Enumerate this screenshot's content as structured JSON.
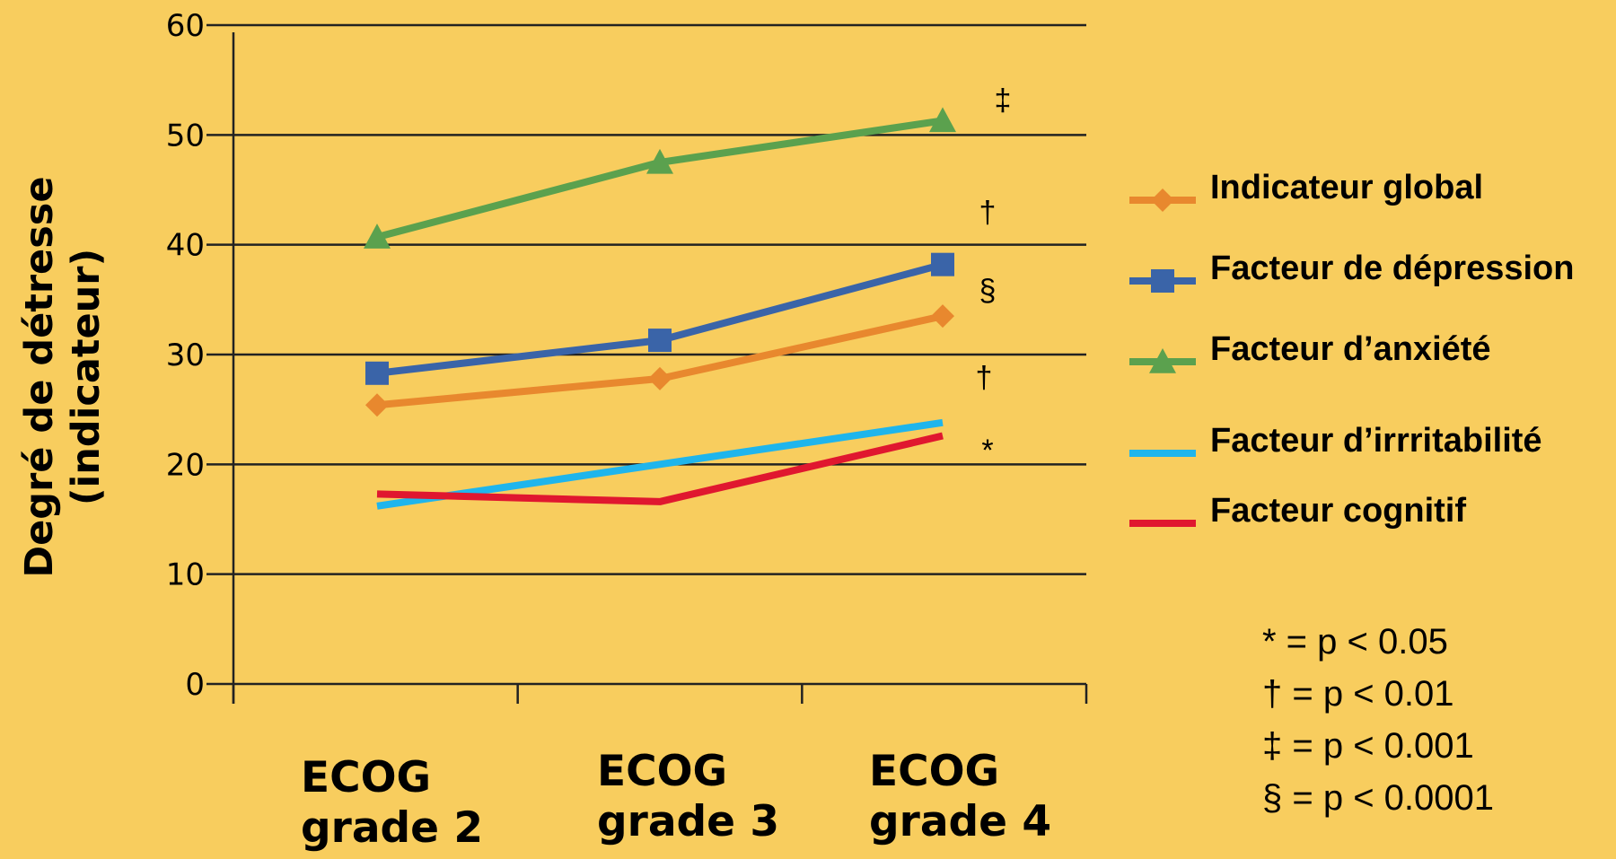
{
  "chart_data": {
    "type": "line",
    "title": "",
    "ylabel_lines": [
      "Degré de détresse",
      "(indicateur)"
    ],
    "xlabel": "",
    "ylim": [
      0,
      60
    ],
    "yticks": [
      "0",
      "10",
      "20",
      "30",
      "40",
      "50",
      "60"
    ],
    "grid": true,
    "legend_position": "right",
    "categories": [
      [
        "ECOG",
        "grade 2"
      ],
      [
        "ECOG",
        "grade 3"
      ],
      [
        "ECOG",
        "grade 4"
      ]
    ],
    "series": [
      {
        "name": "Indicateur global",
        "values": [
          25.4,
          27.8,
          33.5
        ],
        "color": "#E8882E",
        "marker": "diamond"
      },
      {
        "name": "Facteur de dépression",
        "values": [
          28.3,
          31.3,
          38.2
        ],
        "color": "#3A64A8",
        "marker": "square"
      },
      {
        "name": "Facteur d’anxiété",
        "values": [
          40.7,
          47.5,
          51.3
        ],
        "color": "#5BA14E",
        "marker": "triangle"
      },
      {
        "name": "Facteur d’irrritabilité",
        "values": [
          16.2,
          20.0,
          23.8
        ],
        "color": "#1FB5EC",
        "marker": "none"
      },
      {
        "name": "Facteur cognitif",
        "values": [
          17.3,
          16.6,
          22.6
        ],
        "color": "#E0172F",
        "marker": "none"
      }
    ],
    "annotations": [
      {
        "text": "‡",
        "series": "Facteur d’anxiété"
      },
      {
        "text": "†",
        "series": "Indicateur global"
      },
      {
        "text": "§",
        "series": "Facteur de dépression"
      },
      {
        "text": "†",
        "series": "Facteur d’irrritabilité"
      },
      {
        "text": "*",
        "series": "Facteur cognitif"
      }
    ],
    "significance_notes": [
      "* = p < 0.05",
      "† = p < 0.01",
      "‡ = p < 0.001",
      "§ = p < 0.0001"
    ]
  }
}
